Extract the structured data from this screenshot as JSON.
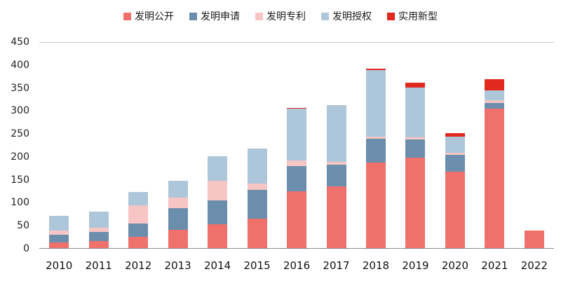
{
  "chart_data": {
    "type": "bar",
    "stacked": true,
    "title": "",
    "xlabel": "",
    "ylabel": "",
    "ylim": [
      0,
      450
    ],
    "ytick_step": 50,
    "grid": false,
    "legend_position": "top",
    "categories": [
      "2010",
      "2011",
      "2012",
      "2013",
      "2014",
      "2015",
      "2016",
      "2017",
      "2018",
      "2019",
      "2020",
      "2021",
      "2022"
    ],
    "series": [
      {
        "name": "发明公开",
        "color": "#F0716C",
        "values": [
          12,
          15,
          24,
          40,
          52,
          65,
          125,
          135,
          188,
          198,
          168,
          305,
          38
        ]
      },
      {
        "name": "发明申请",
        "color": "#6C8EAD",
        "values": [
          17,
          20,
          30,
          47,
          52,
          62,
          55,
          48,
          52,
          40,
          37,
          13,
          0
        ]
      },
      {
        "name": "发明专利",
        "color": "#F7C5C3",
        "values": [
          10,
          10,
          40,
          24,
          44,
          14,
          12,
          6,
          4,
          5,
          4,
          6,
          0
        ]
      },
      {
        "name": "发明授权",
        "color": "#AEC6DA",
        "values": [
          32,
          35,
          29,
          37,
          54,
          77,
          113,
          124,
          146,
          109,
          36,
          22,
          0
        ]
      },
      {
        "name": "实用新型",
        "color": "#E02A20",
        "values": [
          0,
          0,
          0,
          0,
          0,
          0,
          3,
          0,
          3,
          10,
          7,
          24,
          0
        ]
      }
    ]
  }
}
